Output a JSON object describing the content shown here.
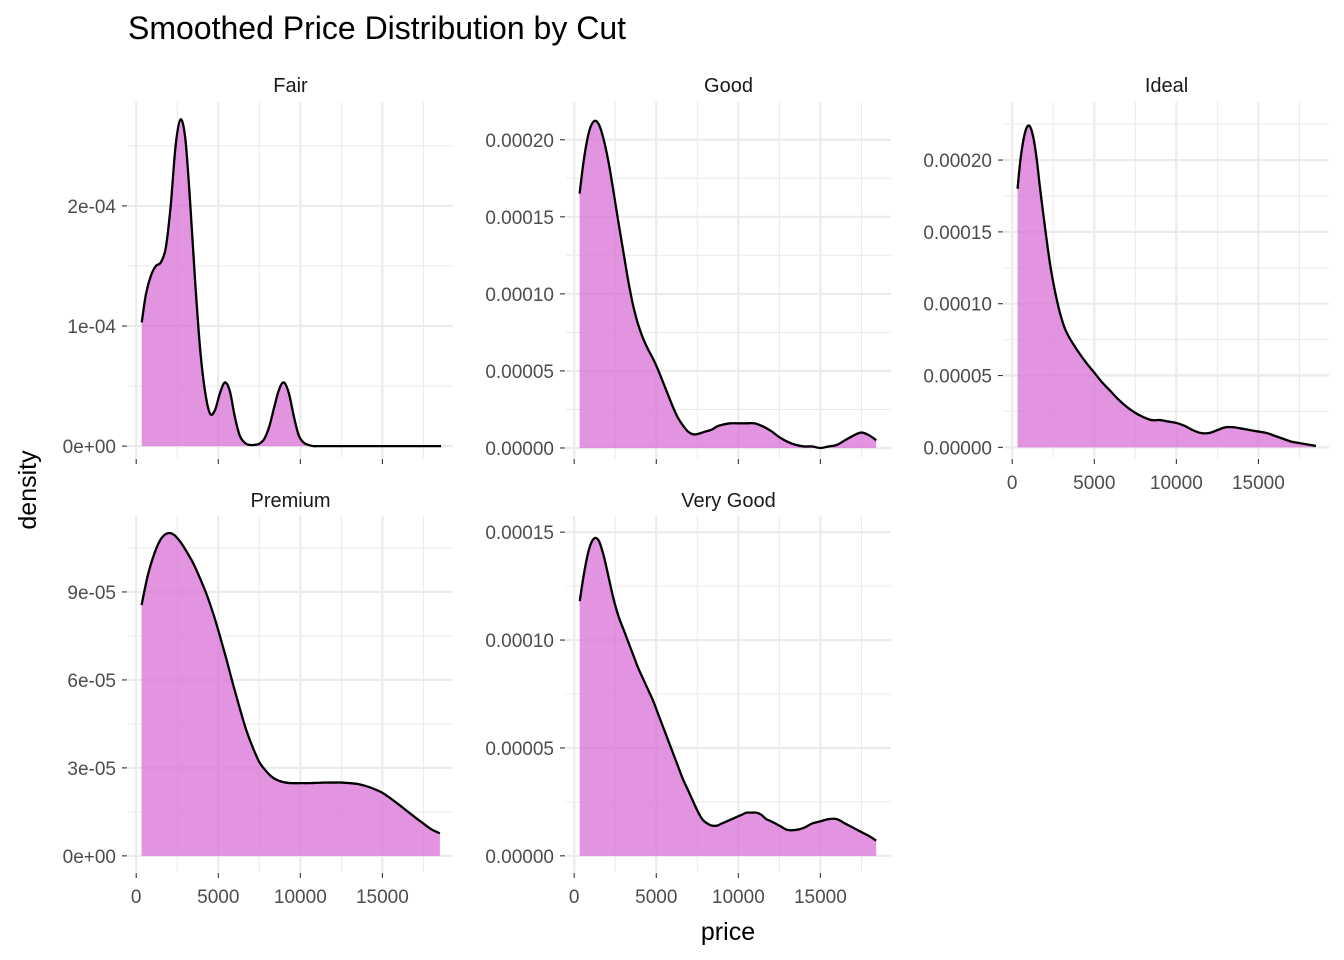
{
  "chart_data": {
    "type": "area",
    "title": "Smoothed Price Distribution by Cut",
    "xlabel": "price",
    "ylabel": "density",
    "fill_color": "#DA70D6",
    "fill_opacity": 0.75,
    "line_color": "#000000",
    "grid": true,
    "xlim": [
      -500,
      19300
    ],
    "x_ticks": [
      0,
      5000,
      10000,
      15000
    ],
    "x_tick_labels": [
      "0",
      "5000",
      "10000",
      "15000"
    ],
    "panels": [
      {
        "name": "Fair",
        "ylim": [
          -9.9e-06,
          0.0002865
        ],
        "y_ticks": [
          0,
          0.0001,
          0.0002
        ],
        "y_tick_labels": [
          "0e+00",
          "1e-04",
          "2e-04"
        ],
        "x": [
          337,
          600,
          900,
          1200,
          1500,
          1800,
          2100,
          2400,
          2700,
          3000,
          3300,
          3600,
          3900,
          4200,
          4500,
          4800,
          5100,
          5400,
          5700,
          6000,
          6300,
          6600,
          6900,
          7200,
          7500,
          7800,
          8100,
          8400,
          8700,
          9000,
          9300,
          9600,
          9900,
          10200,
          10500,
          10800,
          11100,
          11400,
          11700,
          12000,
          12500,
          13000,
          14000,
          15000,
          16000,
          17000,
          18000,
          18574
        ],
        "y": [
          0.000103,
          0.000127,
          0.000142,
          0.00015,
          0.000153,
          0.000165,
          0.0002,
          0.00025,
          0.000272,
          0.000255,
          0.0002,
          0.000135,
          8e-05,
          4.5e-05,
          2.7e-05,
          3e-05,
          4.4e-05,
          5.3e-05,
          4.6e-05,
          2.5e-05,
          9e-06,
          3e-06,
          1e-06,
          1e-06,
          2e-06,
          6e-06,
          1.6e-05,
          3.2e-05,
          4.7e-05,
          5.3e-05,
          4.4e-05,
          2.5e-05,
          9e-06,
          3e-06,
          1e-06,
          0.0,
          0.0,
          0.0,
          0.0,
          0.0,
          0.0,
          0.0,
          0.0,
          0.0,
          0.0,
          0.0,
          0.0,
          0.0
        ]
      },
      {
        "name": "Good",
        "ylim": [
          -6.5e-06,
          0.0002245
        ],
        "y_ticks": [
          0,
          5e-05,
          0.0001,
          0.00015,
          0.0002
        ],
        "y_tick_labels": [
          "0.00000",
          "0.00005",
          "0.00010",
          "0.00015",
          "0.00020"
        ],
        "x": [
          327,
          600,
          900,
          1200,
          1500,
          1800,
          2100,
          2400,
          2700,
          3000,
          3300,
          3600,
          3900,
          4200,
          4500,
          4800,
          5100,
          5400,
          5700,
          6000,
          6300,
          6600,
          6900,
          7200,
          7500,
          7800,
          8100,
          8400,
          8700,
          9000,
          9500,
          10000,
          10500,
          11000,
          11500,
          12000,
          12500,
          13000,
          13500,
          14000,
          14500,
          15000,
          15500,
          16000,
          16500,
          17000,
          17500,
          18000,
          18400
        ],
        "y": [
          0.000165,
          0.000188,
          0.000205,
          0.000212,
          0.00021,
          0.0002,
          0.000185,
          0.000166,
          0.000146,
          0.000127,
          0.000108,
          9.2e-05,
          8e-05,
          7.1e-05,
          6.4e-05,
          5.8e-05,
          5.1e-05,
          4.3e-05,
          3.5e-05,
          2.7e-05,
          2e-05,
          1.5e-05,
          1.1e-05,
          9e-06,
          9e-06,
          1e-05,
          1.1e-05,
          1.2e-05,
          1.4e-05,
          1.5e-05,
          1.6e-05,
          1.6e-05,
          1.6e-05,
          1.6e-05,
          1.4e-05,
          1.1e-05,
          7e-06,
          4e-06,
          2e-06,
          1e-06,
          1e-06,
          0.0,
          1e-06,
          2e-06,
          5e-06,
          8e-06,
          1e-05,
          8e-06,
          5e-06
        ]
      },
      {
        "name": "Ideal",
        "ylim": [
          -7.4e-06,
          0.0002404
        ],
        "y_ticks": [
          0,
          5e-05,
          0.0001,
          0.00015,
          0.0002
        ],
        "y_tick_labels": [
          "0.00000",
          "0.00005",
          "0.00010",
          "0.00015",
          "0.00020"
        ],
        "x": [
          326,
          500,
          700,
          900,
          1100,
          1300,
          1500,
          1700,
          2000,
          2300,
          2600,
          2900,
          3200,
          3500,
          4000,
          4500,
          5000,
          5500,
          6000,
          6500,
          7000,
          7500,
          8000,
          8500,
          9000,
          9500,
          10000,
          10500,
          11000,
          11500,
          12000,
          12500,
          13000,
          13500,
          14000,
          14500,
          15000,
          15500,
          16000,
          16500,
          17000,
          17500,
          18000,
          18500
        ],
        "y": [
          0.00018,
          0.0002,
          0.000215,
          0.000223,
          0.000223,
          0.000215,
          0.0002,
          0.00018,
          0.000153,
          0.000128,
          0.000109,
          9.4e-05,
          8.3e-05,
          7.6e-05,
          6.7e-05,
          5.9e-05,
          5.2e-05,
          4.5e-05,
          3.9e-05,
          3.3e-05,
          2.8e-05,
          2.4e-05,
          2.1e-05,
          1.9e-05,
          1.9e-05,
          1.8e-05,
          1.7e-05,
          1.5e-05,
          1.2e-05,
          1e-05,
          1e-05,
          1.2e-05,
          1.4e-05,
          1.4e-05,
          1.3e-05,
          1.2e-05,
          1.1e-05,
          1e-05,
          8e-06,
          6e-06,
          4e-06,
          3e-06,
          2e-06,
          1e-06
        ]
      },
      {
        "name": "Premium",
        "ylim": [
          -5.5e-06,
          0.0001159
        ],
        "y_ticks": [
          0,
          3e-05,
          6e-05,
          9e-05
        ],
        "y_tick_labels": [
          "0e+00",
          "3e-05",
          "6e-05",
          "9e-05"
        ],
        "x": [
          326,
          700,
          1100,
          1500,
          1900,
          2300,
          2700,
          3100,
          3500,
          3900,
          4300,
          4700,
          5100,
          5500,
          5900,
          6300,
          6700,
          7100,
          7500,
          7900,
          8300,
          8700,
          9100,
          9500,
          10000,
          10500,
          11000,
          11500,
          12000,
          12500,
          13000,
          13500,
          14000,
          14500,
          15000,
          15500,
          16000,
          16500,
          17000,
          17500,
          18000,
          18500
        ],
        "y": [
          8.55e-05,
          9.55e-05,
          0.000103,
          0.000108,
          0.00011,
          0.0001095,
          0.000107,
          0.0001035,
          9.95e-05,
          9.45e-05,
          8.9e-05,
          8.25e-05,
          7.5e-05,
          6.7e-05,
          5.85e-05,
          5.05e-05,
          4.3e-05,
          3.7e-05,
          3.2e-05,
          2.9e-05,
          2.68e-05,
          2.56e-05,
          2.5e-05,
          2.48e-05,
          2.48e-05,
          2.48e-05,
          2.49e-05,
          2.5e-05,
          2.5e-05,
          2.5e-05,
          2.48e-05,
          2.45e-05,
          2.38e-05,
          2.28e-05,
          2.15e-05,
          1.96e-05,
          1.75e-05,
          1.53e-05,
          1.31e-05,
          1.1e-05,
          9e-06,
          7.7e-06
        ]
      },
      {
        "name": "Very Good",
        "ylim": [
          -7.5e-06,
          0.0001575
        ],
        "y_ticks": [
          0,
          5e-05,
          0.0001,
          0.00015
        ],
        "y_tick_labels": [
          "0.00000",
          "0.00005",
          "0.00010",
          "0.00015"
        ],
        "x": [
          336,
          600,
          900,
          1200,
          1500,
          1800,
          2100,
          2400,
          2700,
          3000,
          3300,
          3600,
          3900,
          4200,
          4500,
          4800,
          5100,
          5400,
          5700,
          6000,
          6300,
          6600,
          6900,
          7200,
          7500,
          7800,
          8100,
          8400,
          8700,
          9000,
          9300,
          9600,
          9900,
          10200,
          10500,
          10800,
          11100,
          11400,
          11700,
          12000,
          12500,
          13000,
          13500,
          14000,
          14500,
          15000,
          15500,
          16000,
          16500,
          17000,
          17500,
          18000,
          18400
        ],
        "y": [
          0.000118,
          0.000131,
          0.000142,
          0.000147,
          0.000146,
          0.000139,
          0.000129,
          0.000119,
          0.000111,
          0.000105,
          9.9e-05,
          9.3e-05,
          8.7e-05,
          8.2e-05,
          7.7e-05,
          7.2e-05,
          6.6e-05,
          6e-05,
          5.4e-05,
          4.8e-05,
          4.2e-05,
          3.6e-05,
          3.1e-05,
          2.6e-05,
          2.1e-05,
          1.7e-05,
          1.5e-05,
          1.4e-05,
          1.4e-05,
          1.5e-05,
          1.6e-05,
          1.7e-05,
          1.8e-05,
          1.9e-05,
          2e-05,
          2e-05,
          2e-05,
          1.9e-05,
          1.7e-05,
          1.6e-05,
          1.4e-05,
          1.2e-05,
          1.2e-05,
          1.3e-05,
          1.5e-05,
          1.6e-05,
          1.7e-05,
          1.7e-05,
          1.5e-05,
          1.3e-05,
          1.1e-05,
          9e-06,
          7e-06
        ]
      }
    ]
  }
}
